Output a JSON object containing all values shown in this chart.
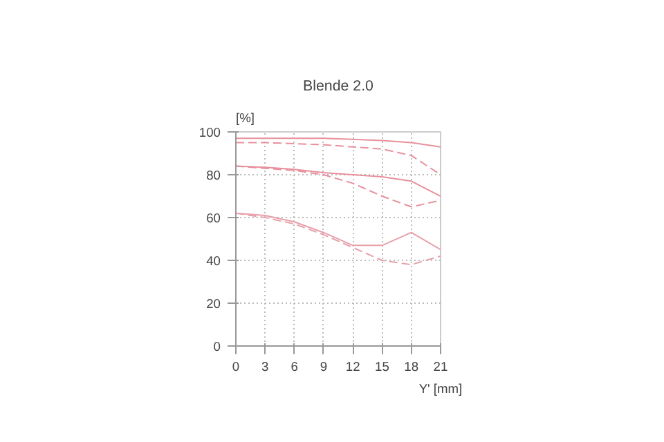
{
  "chart_data": {
    "type": "line",
    "title": "Blende 2.0",
    "xlabel": "Y' [mm]",
    "ylabel": "[%]",
    "x": [
      0,
      3,
      6,
      9,
      12,
      15,
      18,
      21
    ],
    "xlim": [
      0,
      21
    ],
    "xticks": [
      0,
      3,
      6,
      9,
      12,
      15,
      18,
      21
    ],
    "ylim": [
      0,
      100
    ],
    "yticks": [
      0,
      20,
      40,
      60,
      80,
      100
    ],
    "grid": true,
    "series": [
      {
        "color": "#e8909c",
        "line_style": "solid",
        "values": [
          97,
          97,
          97,
          97,
          96.5,
          96,
          95,
          93
        ]
      },
      {
        "color": "#e8909c",
        "line_style": "dashed",
        "values": [
          95,
          95,
          94.5,
          94,
          93,
          92,
          89,
          80
        ]
      },
      {
        "color": "#e8909c",
        "line_style": "solid",
        "values": [
          84,
          83.5,
          82.5,
          81,
          80,
          79,
          77,
          70
        ]
      },
      {
        "color": "#e8909c",
        "line_style": "dashed",
        "values": [
          84,
          83,
          82,
          80,
          76,
          70,
          65,
          68
        ]
      },
      {
        "color": "#e8a0aa",
        "line_style": "solid",
        "values": [
          62,
          61,
          58,
          53,
          47,
          47,
          53,
          45
        ]
      },
      {
        "color": "#e8a0aa",
        "line_style": "dashed",
        "values": [
          62,
          60,
          57,
          52,
          46,
          40,
          38,
          42
        ]
      }
    ]
  }
}
